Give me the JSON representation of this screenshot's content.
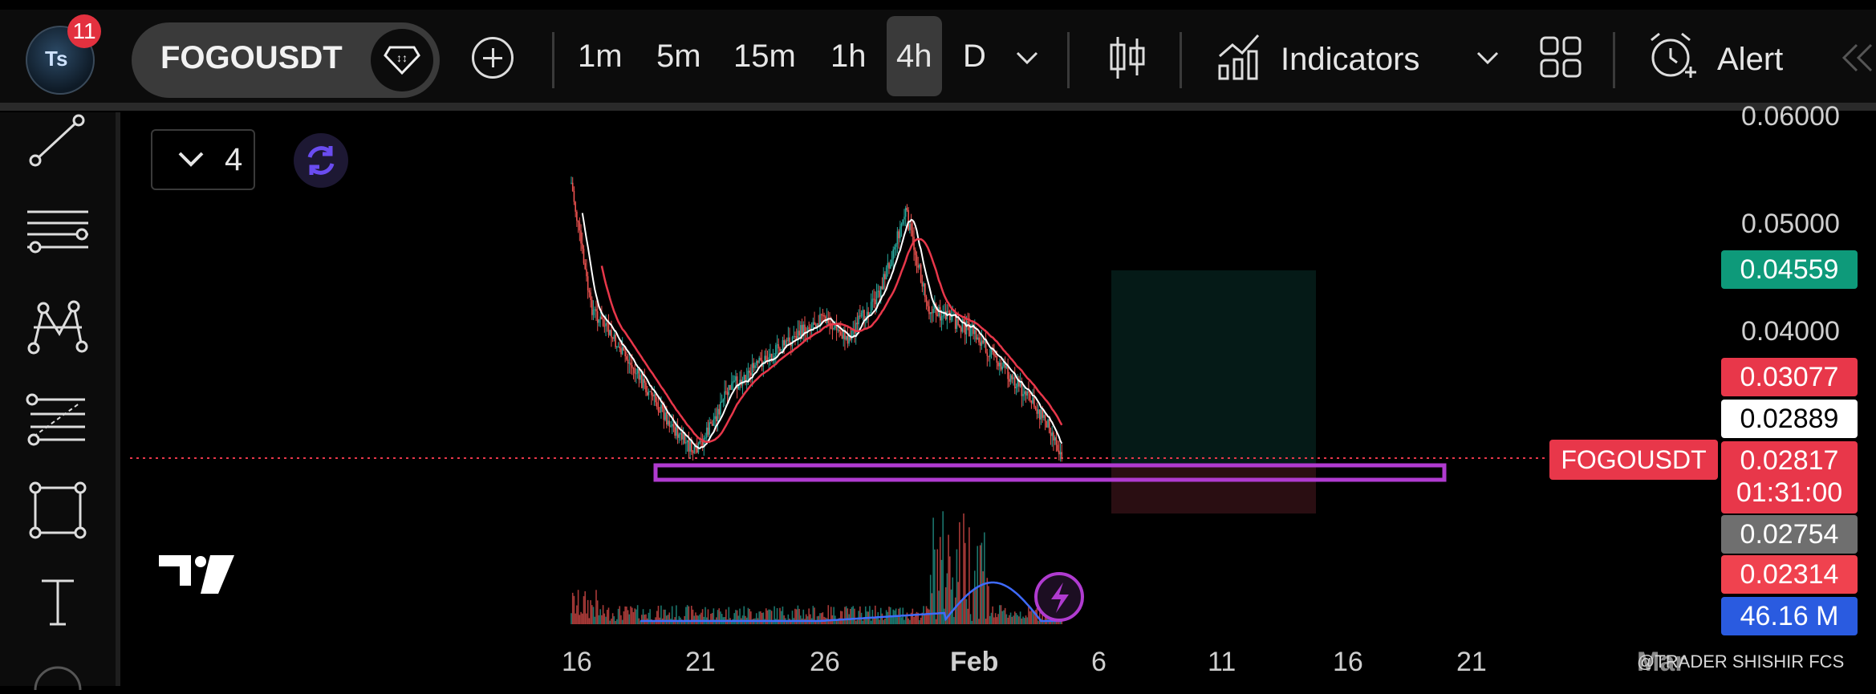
{
  "header": {
    "notification_count": "11",
    "avatar_initials": "Ts",
    "symbol": "FOGOUSDT",
    "timeframes": [
      "1m",
      "5m",
      "15m",
      "1h",
      "4h",
      "D"
    ],
    "active_timeframe": "4h",
    "indicators_label": "Indicators",
    "alert_label": "Alert"
  },
  "chart_controls": {
    "interval_count": "4"
  },
  "price_axis": {
    "ticks": [
      "0.06000",
      "0.05000",
      "0.04000"
    ],
    "chips": [
      {
        "label": "0.04559",
        "color": "#0e9a7a",
        "text_color": "#ffffff"
      },
      {
        "label": "0.03077",
        "color": "#e8374a",
        "text_color": "#ffffff"
      },
      {
        "label": "0.02889",
        "color": "#ffffff",
        "text_color": "#000000"
      },
      {
        "label": "0.02817",
        "color": "#e8374a",
        "text_color": "#ffffff"
      },
      {
        "label": "01:31:00",
        "color": "#e8374a",
        "text_color": "#ffffff"
      },
      {
        "label": "0.02754",
        "color": "#6f6f6f",
        "text_color": "#ffffff"
      },
      {
        "label": "0.02314",
        "color": "#f0424f",
        "text_color": "#ffffff"
      },
      {
        "label": "46.16 M",
        "color": "#2a5be0",
        "text_color": "#ffffff"
      }
    ],
    "symbol_label": "FOGOUSDT"
  },
  "time_axis": {
    "labels": [
      "16",
      "21",
      "26",
      "Feb",
      "6",
      "11",
      "16",
      "21",
      "Mar"
    ]
  },
  "watermark": "@TRADER SHISHIR FCS",
  "colors": {
    "up": "#26a69a",
    "down": "#ef5350",
    "ma_fast": "#ffffff",
    "ma_slow": "#e8374a",
    "volume_ma": "#3f6bff",
    "support_box": "#b03bd0",
    "target_zone": "#0a1f1c",
    "stop_zone": "#2a0e12"
  }
}
